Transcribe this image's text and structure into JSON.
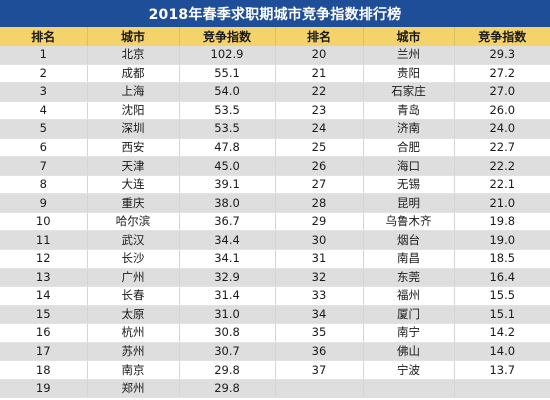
{
  "title": "2018年春季求职期城市竞争指数排行榜",
  "headers": [
    "排名",
    "城市",
    "竞争指数",
    "排名",
    "城市",
    "竞争指数"
  ],
  "rows_left": [
    {
      "rank": "1",
      "city": "北京",
      "index": "102.9"
    },
    {
      "rank": "2",
      "city": "成都",
      "index": "55.1"
    },
    {
      "rank": "3",
      "city": "上海",
      "index": "54.0"
    },
    {
      "rank": "4",
      "city": "沈阳",
      "index": "53.5"
    },
    {
      "rank": "5",
      "city": "深圳",
      "index": "53.5"
    },
    {
      "rank": "6",
      "city": "西安",
      "index": "47.8"
    },
    {
      "rank": "7",
      "city": "天津",
      "index": "45.0"
    },
    {
      "rank": "8",
      "city": "大连",
      "index": "39.1"
    },
    {
      "rank": "9",
      "city": "重庆",
      "index": "38.0"
    },
    {
      "rank": "10",
      "city": "哈尔滨",
      "index": "36.7"
    },
    {
      "rank": "11",
      "city": "武汉",
      "index": "34.4"
    },
    {
      "rank": "12",
      "city": "长沙",
      "index": "34.1"
    },
    {
      "rank": "13",
      "city": "广州",
      "index": "32.9"
    },
    {
      "rank": "14",
      "city": "长春",
      "index": "31.4"
    },
    {
      "rank": "15",
      "city": "太原",
      "index": "31.0"
    },
    {
      "rank": "16",
      "city": "杭州",
      "index": "30.8"
    },
    {
      "rank": "17",
      "city": "苏州",
      "index": "30.7"
    },
    {
      "rank": "18",
      "city": "南京",
      "index": "29.8"
    },
    {
      "rank": "19",
      "city": "郑州",
      "index": "29.8"
    }
  ],
  "rows_right": [
    {
      "rank": "20",
      "city": "兰州",
      "index": "29.3"
    },
    {
      "rank": "21",
      "city": "贵阳",
      "index": "27.2"
    },
    {
      "rank": "22",
      "city": "石家庄",
      "index": "27.0"
    },
    {
      "rank": "23",
      "city": "青岛",
      "index": "26.0"
    },
    {
      "rank": "24",
      "city": "济南",
      "index": "24.0"
    },
    {
      "rank": "25",
      "city": "合肥",
      "index": "22.7"
    },
    {
      "rank": "26",
      "city": "海口",
      "index": "22.2"
    },
    {
      "rank": "27",
      "city": "无锡",
      "index": "22.1"
    },
    {
      "rank": "28",
      "city": "昆明",
      "index": "21.0"
    },
    {
      "rank": "29",
      "city": "乌鲁木齐",
      "index": "19.8"
    },
    {
      "rank": "30",
      "city": "烟台",
      "index": "19.0"
    },
    {
      "rank": "31",
      "city": "南昌",
      "index": "18.5"
    },
    {
      "rank": "32",
      "city": "东莞",
      "index": "16.4"
    },
    {
      "rank": "33",
      "city": "福州",
      "index": "15.5"
    },
    {
      "rank": "34",
      "city": "厦门",
      "index": "15.1"
    },
    {
      "rank": "35",
      "city": "南宁",
      "index": "14.2"
    },
    {
      "rank": "36",
      "city": "佛山",
      "index": "14.0"
    },
    {
      "rank": "37",
      "city": "宁波",
      "index": "13.7"
    }
  ],
  "colors": {
    "title_bg": "#1f4e99",
    "header_bg": "#f5d36b",
    "stripe": "#dedede"
  }
}
